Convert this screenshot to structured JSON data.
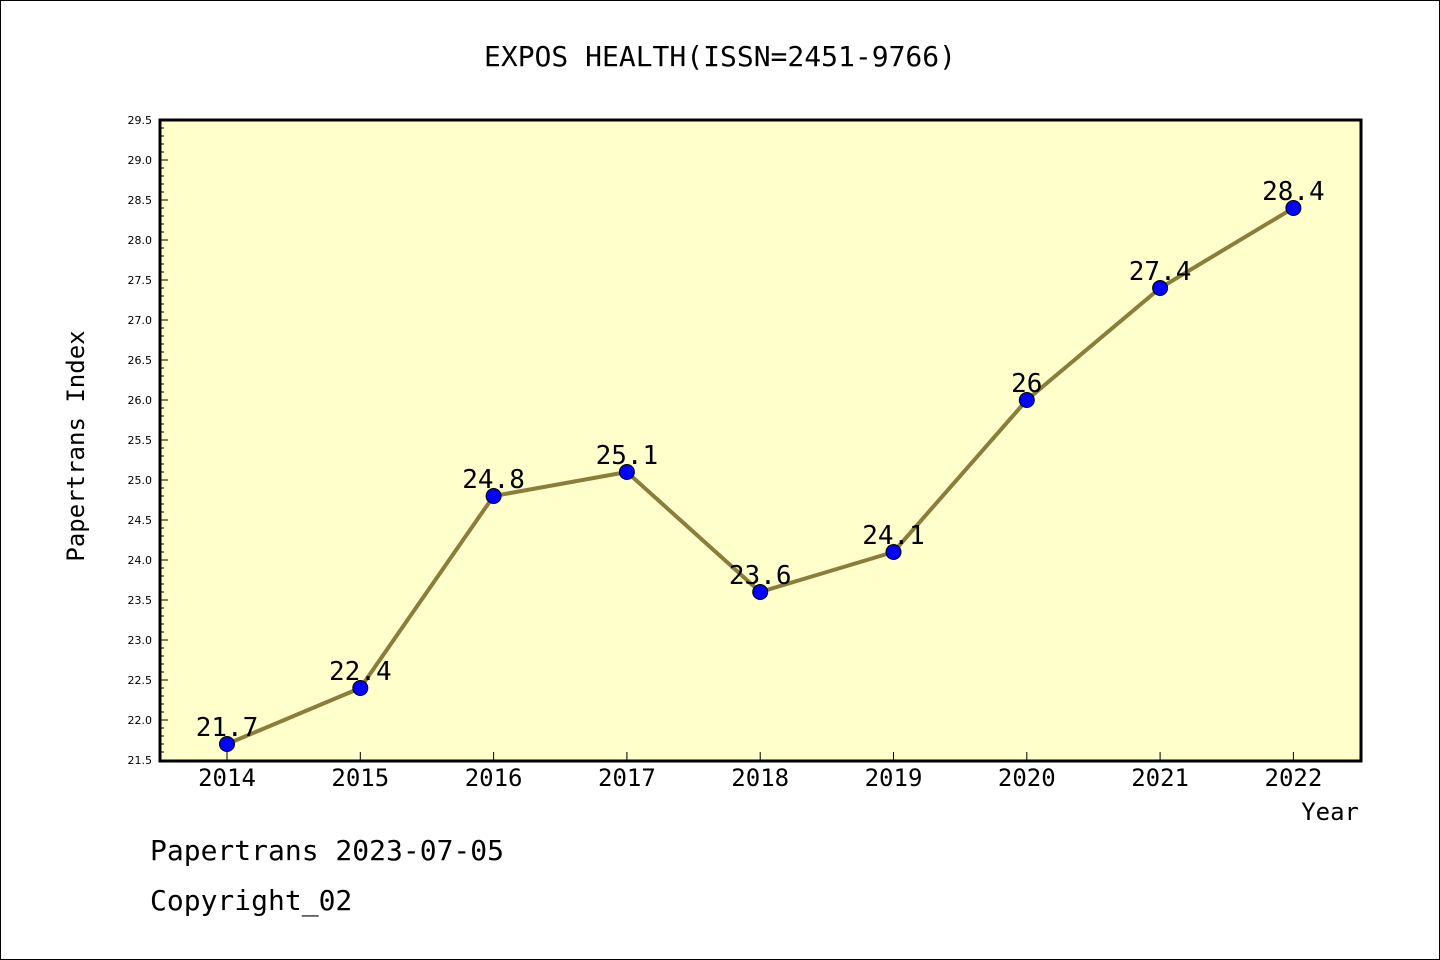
{
  "chart_data": {
    "type": "line",
    "title": "EXPOS HEALTH(ISSN=2451-9766)",
    "xlabel": "Year",
    "ylabel": "Papertrans Index",
    "categories": [
      "2014",
      "2015",
      "2016",
      "2017",
      "2018",
      "2019",
      "2020",
      "2021",
      "2022"
    ],
    "series": [
      {
        "values": [
          21.7,
          22.4,
          24.8,
          25.1,
          23.6,
          24.1,
          26,
          27.4,
          28.4
        ]
      }
    ],
    "data_labels": [
      "21.7",
      "22.4",
      "24.8",
      "25.1",
      "23.6",
      "24.1",
      "26",
      "27.4",
      "28.4"
    ],
    "ylim": [
      21.5,
      29.5
    ],
    "yticks": [
      "21.5",
      "22.0",
      "22.5",
      "23.0",
      "23.5",
      "24.0",
      "24.5",
      "25.0",
      "25.5",
      "26.0",
      "26.5",
      "27.0",
      "27.5",
      "28.0",
      "28.5",
      "29.0",
      "29.5"
    ],
    "grid": false,
    "colors": {
      "plot_background": "#ffffcc",
      "line": "#8b7d3a",
      "marker": "#0000ff"
    }
  },
  "footer": {
    "line1": "Papertrans 2023-07-05",
    "line2": "Copyright_02"
  }
}
